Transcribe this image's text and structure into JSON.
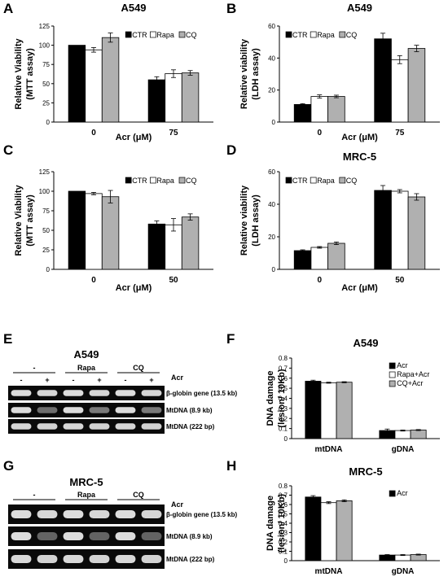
{
  "panel_letters": [
    "A",
    "B",
    "C",
    "D",
    "E",
    "F",
    "G",
    "H"
  ],
  "colors": {
    "ctr": "#000000",
    "rapa": "#ffffff",
    "cq": "#b0b0b0",
    "edge": "#000000",
    "gel_bg": "#0a0a0a",
    "band": "#e8e8e8"
  },
  "chart_data": [
    {
      "id": "A",
      "type": "bar",
      "title": "A549",
      "ylabel_lines": [
        "Relative Viability",
        "(MTT assay)"
      ],
      "xlabel": "Acr (μM)",
      "categories": [
        "0",
        "75"
      ],
      "ylim": [
        0,
        125
      ],
      "yticks": [
        0,
        25,
        50,
        75,
        100,
        125
      ],
      "legend": "top-right",
      "series": [
        {
          "name": "CTR",
          "color": "#000000",
          "values": [
            100,
            55
          ],
          "errors": [
            0,
            4
          ]
        },
        {
          "name": "Rapa",
          "color": "#ffffff",
          "values": [
            94,
            63
          ],
          "errors": [
            3,
            5
          ]
        },
        {
          "name": "CQ",
          "color": "#b0b0b0",
          "values": [
            110,
            64
          ],
          "errors": [
            6,
            3
          ]
        }
      ]
    },
    {
      "id": "B",
      "type": "bar",
      "title": "A549",
      "ylabel_lines": [
        "Relative viability",
        "(LDH assay)"
      ],
      "xlabel": "Acr (μM)",
      "categories": [
        "0",
        "75"
      ],
      "ylim": [
        0,
        60
      ],
      "yticks": [
        0,
        20,
        40,
        60
      ],
      "legend": "top-left",
      "series": [
        {
          "name": "CTR",
          "color": "#000000",
          "values": [
            11,
            52
          ],
          "errors": [
            0.5,
            3.5
          ]
        },
        {
          "name": "Rapa",
          "color": "#ffffff",
          "values": [
            16,
            39
          ],
          "errors": [
            1,
            2.5
          ]
        },
        {
          "name": "CQ",
          "color": "#b0b0b0",
          "values": [
            16,
            46
          ],
          "errors": [
            0.8,
            2
          ]
        }
      ]
    },
    {
      "id": "C",
      "type": "bar",
      "title": "",
      "ylabel_lines": [
        "Relative Viability",
        "(MTT assay)"
      ],
      "xlabel": "Acr (μM)",
      "categories": [
        "0",
        "50"
      ],
      "ylim": [
        0,
        125
      ],
      "yticks": [
        0,
        25,
        50,
        75,
        100,
        125
      ],
      "legend": "top-right",
      "series": [
        {
          "name": "CTR",
          "color": "#000000",
          "values": [
            100,
            58
          ],
          "errors": [
            0,
            4
          ]
        },
        {
          "name": "Rapa",
          "color": "#ffffff",
          "values": [
            97,
            57
          ],
          "errors": [
            1.5,
            8
          ]
        },
        {
          "name": "CQ",
          "color": "#b0b0b0",
          "values": [
            93,
            67
          ],
          "errors": [
            8,
            4
          ]
        }
      ]
    },
    {
      "id": "D",
      "type": "bar",
      "title": "MRC-5",
      "ylabel_lines": [
        "Relative viability",
        "(LDH assay)"
      ],
      "xlabel": "Acr (μM)",
      "categories": [
        "0",
        "50"
      ],
      "ylim": [
        0,
        60
      ],
      "yticks": [
        0,
        20,
        40,
        60
      ],
      "legend": "top-left",
      "series": [
        {
          "name": "CTR",
          "color": "#000000",
          "values": [
            11.5,
            48.5
          ],
          "errors": [
            0.5,
            3
          ]
        },
        {
          "name": "Rapa",
          "color": "#ffffff",
          "values": [
            13.5,
            48
          ],
          "errors": [
            0.5,
            1
          ]
        },
        {
          "name": "CQ",
          "color": "#b0b0b0",
          "values": [
            16,
            44.5
          ],
          "errors": [
            0.8,
            2
          ]
        }
      ]
    },
    {
      "id": "F",
      "type": "bar",
      "title": "A549",
      "ylabel_lines": [
        "DNA damage",
        "(lesion/ 10Kb)"
      ],
      "xlabel": "",
      "categories": [
        "mtDNA",
        "gDNA"
      ],
      "ylim": [
        0,
        0.8
      ],
      "yticks": [
        0,
        0.1,
        0.2,
        0.3,
        0.4,
        0.5,
        0.6,
        0.7,
        0.8
      ],
      "legend": "top-right-stacked",
      "series": [
        {
          "name": "Acr",
          "color": "#000000",
          "values": [
            0.57,
            0.08
          ],
          "errors": [
            0.01,
            0.015
          ]
        },
        {
          "name": "Rapa+Acr",
          "color": "#ffffff",
          "values": [
            0.555,
            0.08
          ],
          "errors": [
            0.005,
            0.005
          ]
        },
        {
          "name": "CQ+Acr",
          "color": "#b0b0b0",
          "values": [
            0.56,
            0.085
          ],
          "errors": [
            0.005,
            0.005
          ]
        }
      ]
    },
    {
      "id": "H",
      "type": "bar",
      "title": "MRC-5",
      "ylabel_lines": [
        "DNA damage",
        "(lesion/ 10Kb)"
      ],
      "xlabel": "",
      "categories": [
        "mtDNA",
        "gDNA"
      ],
      "ylim": [
        0,
        0.8
      ],
      "yticks": [
        0,
        0.1,
        0.2,
        0.3,
        0.4,
        0.5,
        0.6,
        0.7,
        0.8
      ],
      "legend": "top-right-single",
      "series": [
        {
          "name": "Acr",
          "color": "#000000",
          "values": [
            0.68,
            0.06
          ],
          "errors": [
            0.015,
            0.005
          ]
        },
        {
          "name": "",
          "color": "#ffffff",
          "values": [
            0.62,
            0.06
          ],
          "errors": [
            0.01,
            0.005
          ]
        },
        {
          "name": "",
          "color": "#b0b0b0",
          "values": [
            0.64,
            0.065
          ],
          "errors": [
            0.01,
            0.005
          ]
        }
      ]
    }
  ],
  "gels": [
    {
      "id": "E",
      "title": "A549",
      "groups": [
        "-",
        "Rapa",
        "CQ"
      ],
      "acr_label": "Acr",
      "lane_signs": [
        "-",
        "+",
        "-",
        "+",
        "-",
        "+"
      ],
      "rows": [
        {
          "label": "β-globin gene (13.5 kb)",
          "intensity": [
            0.95,
            0.92,
            0.95,
            0.92,
            0.95,
            0.92
          ]
        },
        {
          "label": "MtDNA (8.9 kb)",
          "intensity": [
            0.95,
            0.45,
            0.95,
            0.5,
            0.95,
            0.5
          ]
        },
        {
          "label": "MtDNA (222 bp)",
          "intensity": [
            0.92,
            0.9,
            0.92,
            0.9,
            0.92,
            0.9
          ]
        }
      ]
    },
    {
      "id": "G",
      "title": "MRC-5",
      "groups": [
        "-",
        "Rapa",
        "CQ"
      ],
      "acr_label": "Acr",
      "lane_signs": [
        "-",
        "+",
        "-",
        "+",
        "-",
        "+"
      ],
      "rows": [
        {
          "label": "β-globin gene (13.5 kb)",
          "intensity": [
            0.95,
            0.92,
            0.95,
            0.92,
            0.95,
            0.92
          ]
        },
        {
          "label": "MtDNA (8.9 kb)",
          "intensity": [
            0.95,
            0.4,
            0.95,
            0.4,
            0.95,
            0.4
          ]
        },
        {
          "label": "MtDNA (222 bp)",
          "intensity": [
            0.93,
            0.9,
            0.93,
            0.9,
            0.93,
            0.9
          ]
        }
      ]
    }
  ]
}
